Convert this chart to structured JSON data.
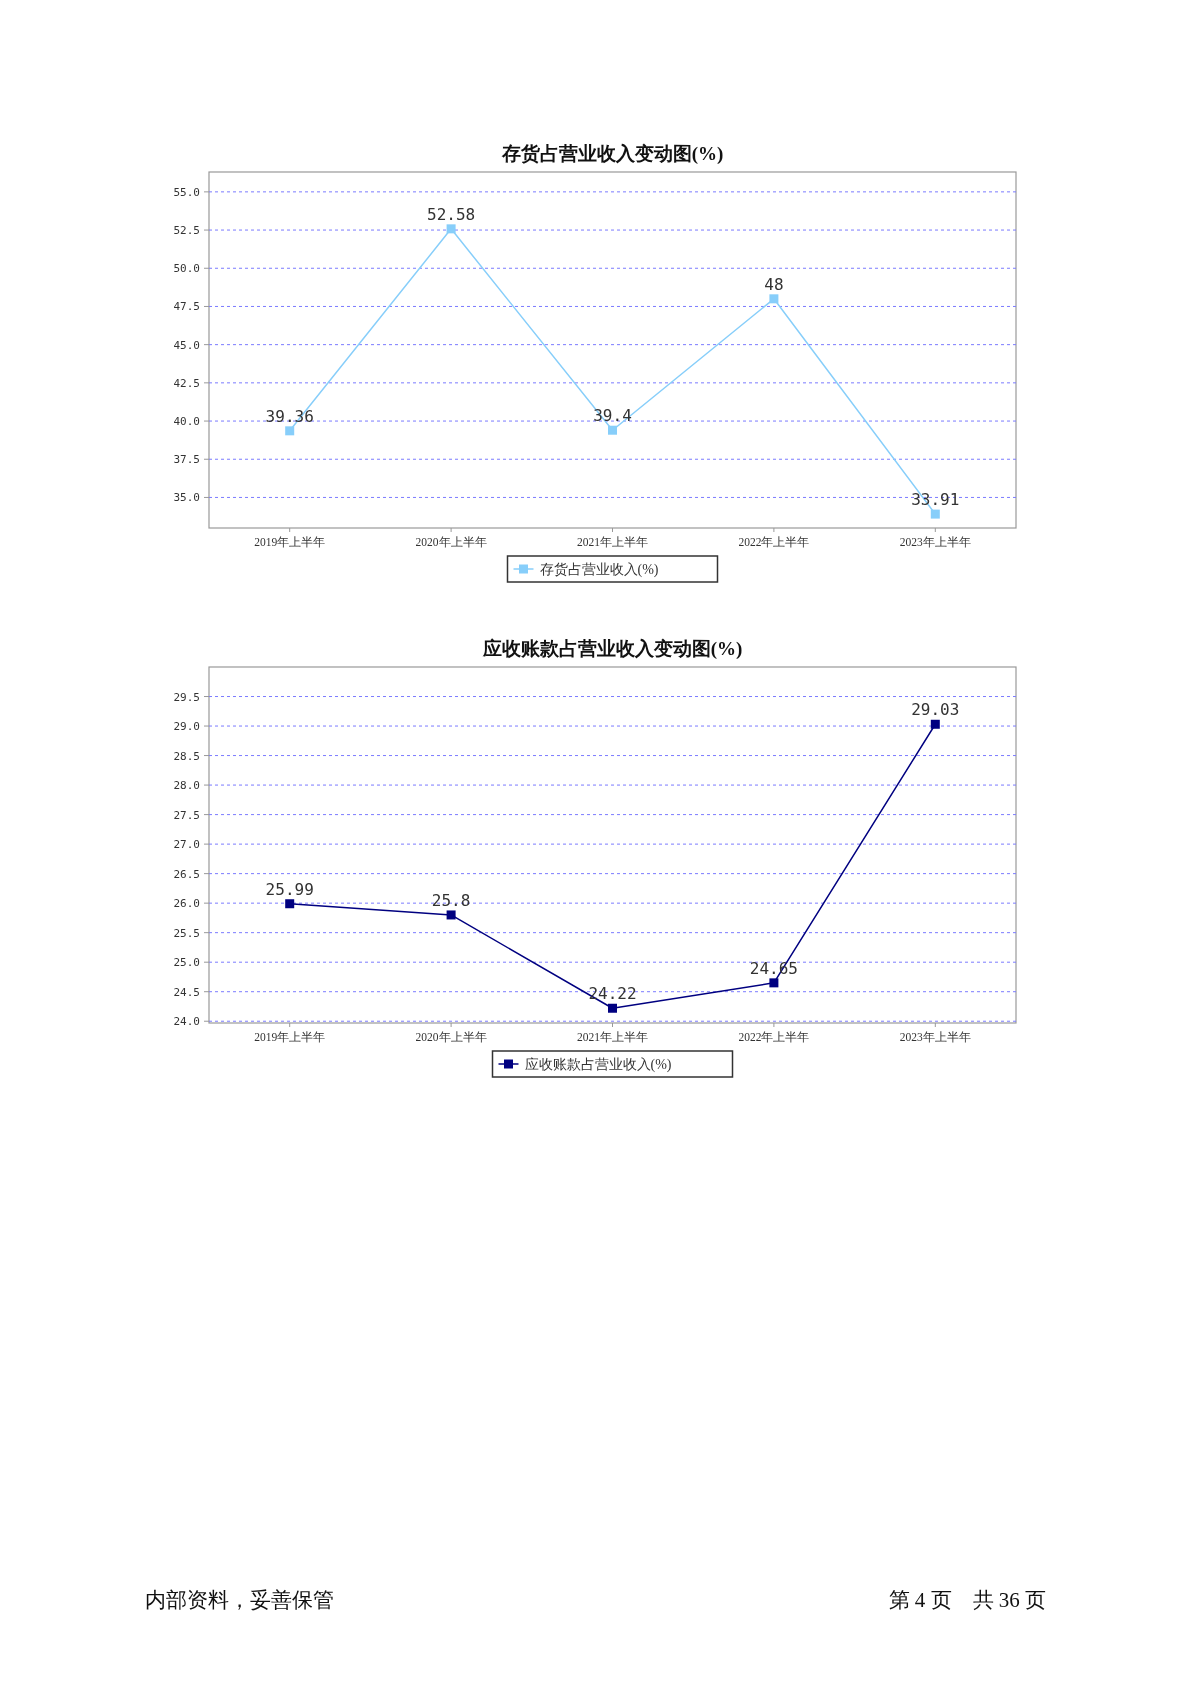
{
  "chart_data": [
    {
      "type": "line",
      "title": "存货占营业收入变动图(%)",
      "categories": [
        "2019年上半年",
        "2020年上半年",
        "2021年上半年",
        "2022年上半年",
        "2023年上半年"
      ],
      "series": [
        {
          "name": "存货占营业收入(%)",
          "color": "#87cefa",
          "values": [
            39.36,
            52.58,
            39.4,
            48,
            33.91
          ]
        }
      ],
      "ylim": [
        33,
        56.3
      ],
      "yticks": [
        {
          "value": 35,
          "label": "35.0"
        },
        {
          "value": 37.5,
          "label": "37.5"
        },
        {
          "value": 40,
          "label": "40.0"
        },
        {
          "value": 42.5,
          "label": "42.5"
        },
        {
          "value": 45,
          "label": "45.0"
        },
        {
          "value": 47.5,
          "label": "47.5"
        },
        {
          "value": 50,
          "label": "50.0"
        },
        {
          "value": 52.5,
          "label": "52.5"
        },
        {
          "value": 55,
          "label": "55.0"
        }
      ],
      "grid": "y",
      "legend": "bottom",
      "marker": "square",
      "data_labels": true
    },
    {
      "type": "line",
      "title": "应收账款占营业收入变动图(%)",
      "categories": [
        "2019年上半年",
        "2020年上半年",
        "2021年上半年",
        "2022年上半年",
        "2023年上半年"
      ],
      "series": [
        {
          "name": "应收账款占营业收入(%)",
          "color": "#000080",
          "values": [
            25.99,
            25.8,
            24.22,
            24.65,
            29.03
          ]
        }
      ],
      "ylim": [
        23.97,
        30
      ],
      "yticks": [
        {
          "value": 24,
          "label": "24.0"
        },
        {
          "value": 24.5,
          "label": "24.5"
        },
        {
          "value": 25,
          "label": "25.0"
        },
        {
          "value": 25.5,
          "label": "25.5"
        },
        {
          "value": 26,
          "label": "26.0"
        },
        {
          "value": 26.5,
          "label": "26.5"
        },
        {
          "value": 27,
          "label": "27.0"
        },
        {
          "value": 27.5,
          "label": "27.5"
        },
        {
          "value": 28,
          "label": "28.0"
        },
        {
          "value": 28.5,
          "label": "28.5"
        },
        {
          "value": 29,
          "label": "29.0"
        },
        {
          "value": 29.5,
          "label": "29.5"
        }
      ],
      "grid": "y",
      "legend": "bottom",
      "marker": "square",
      "data_labels": true,
      "annotations": [
        "内部资料，妥善保管",
        "第 4 页　共 36 页"
      ]
    }
  ]
}
